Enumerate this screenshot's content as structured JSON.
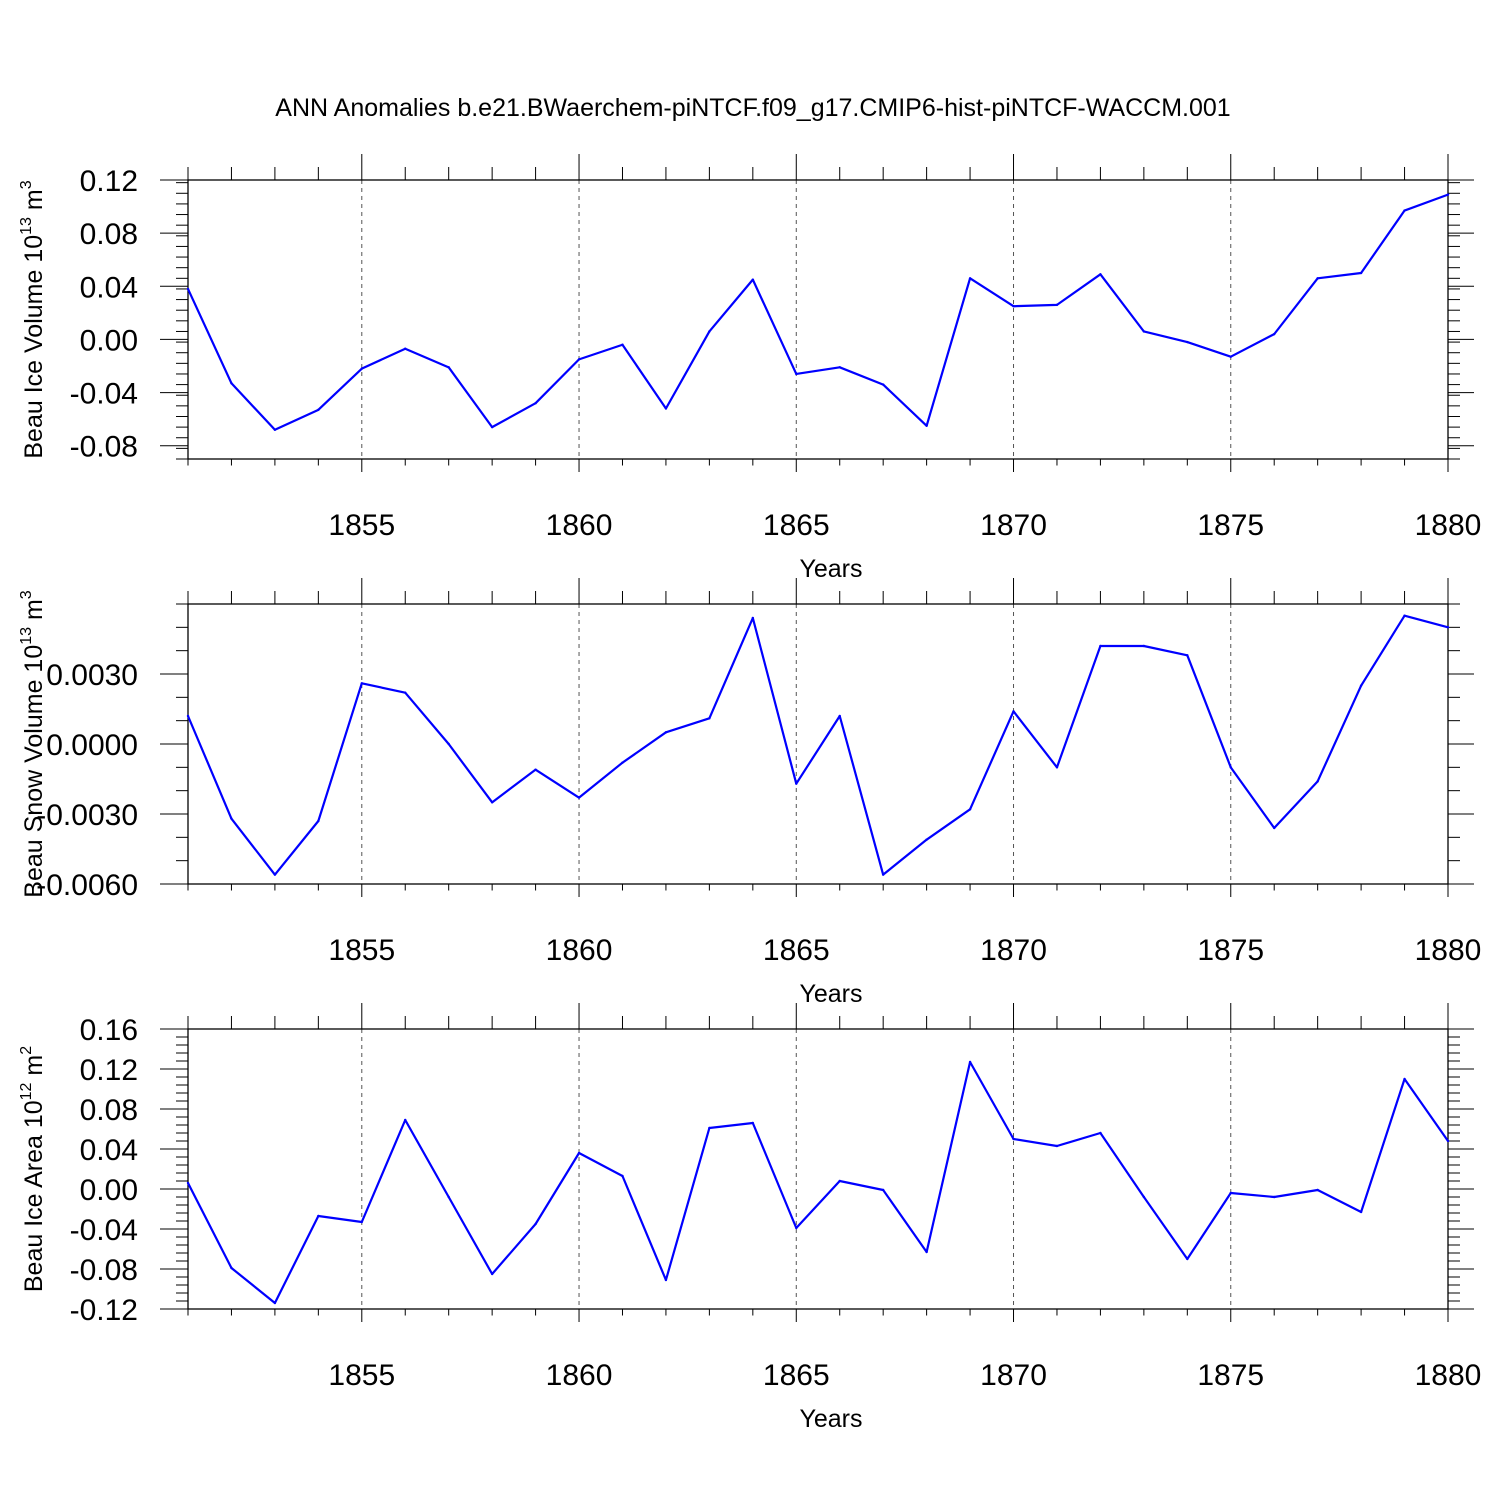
{
  "title": "ANN Anomalies b.e21.BWaerchem-piNTCF.f09_g17.CMIP6-hist-piNTCF-WACCM.001",
  "colors": {
    "series": "#0000ff",
    "axes": "#000000",
    "grid": "#555555"
  },
  "chart_data": [
    {
      "type": "line",
      "ylabel": "Beau Ice Volume 10",
      "ylabel_sup": "13",
      "ylabel_unit": " m",
      "ylabel_unit_sup": "3",
      "xlabel": "Years",
      "xlim": [
        1851,
        1880
      ],
      "ylim": [
        -0.09,
        0.12
      ],
      "yticks": [
        0.12,
        0.08,
        0.04,
        0.0,
        -0.04,
        -0.08
      ],
      "ytick_labels": [
        "0.12",
        "0.08",
        "0.04",
        "0.00",
        "-0.04",
        "-0.08"
      ],
      "yminor_step": 0.008,
      "xticks": [
        1855,
        1860,
        1865,
        1870,
        1875,
        1880
      ],
      "xtick_labels": [
        "1855",
        "1860",
        "1865",
        "1870",
        "1875",
        "1880"
      ],
      "x": [
        1851,
        1852,
        1853,
        1854,
        1855,
        1856,
        1857,
        1858,
        1859,
        1860,
        1861,
        1862,
        1863,
        1864,
        1865,
        1866,
        1867,
        1868,
        1869,
        1870,
        1871,
        1872,
        1873,
        1874,
        1875,
        1876,
        1877,
        1878,
        1879,
        1880
      ],
      "series": [
        {
          "name": "Beau Ice Volume",
          "values": [
            0.038,
            -0.033,
            -0.068,
            -0.053,
            -0.022,
            -0.007,
            -0.021,
            -0.066,
            -0.048,
            -0.015,
            -0.004,
            -0.052,
            0.006,
            0.045,
            -0.026,
            -0.021,
            -0.034,
            -0.065,
            0.046,
            0.025,
            0.026,
            0.049,
            0.006,
            -0.002,
            -0.013,
            0.004,
            0.046,
            0.05,
            0.097,
            0.109
          ]
        }
      ]
    },
    {
      "type": "line",
      "ylabel": "Beau Snow Volume 10",
      "ylabel_sup": "13",
      "ylabel_unit": " m",
      "ylabel_unit_sup": "3",
      "xlabel": "Years",
      "xlim": [
        1851,
        1880
      ],
      "ylim": [
        -0.006,
        0.006
      ],
      "yticks": [
        0.003,
        0.0,
        -0.003,
        -0.006
      ],
      "ytick_labels": [
        "0.0030",
        "0.0000",
        "-0.0030",
        "-0.0060"
      ],
      "yminor_step": 0.001,
      "xticks": [
        1855,
        1860,
        1865,
        1870,
        1875,
        1880
      ],
      "xtick_labels": [
        "1855",
        "1860",
        "1865",
        "1870",
        "1875",
        "1880"
      ],
      "x": [
        1851,
        1852,
        1853,
        1854,
        1855,
        1856,
        1857,
        1858,
        1859,
        1860,
        1861,
        1862,
        1863,
        1864,
        1865,
        1866,
        1867,
        1868,
        1869,
        1870,
        1871,
        1872,
        1873,
        1874,
        1875,
        1876,
        1877,
        1878,
        1879,
        1880
      ],
      "series": [
        {
          "name": "Beau Snow Volume",
          "values": [
            0.0012,
            -0.0032,
            -0.0056,
            -0.0033,
            0.0026,
            0.0022,
            0.0,
            -0.0025,
            -0.0011,
            -0.0023,
            -0.0008,
            0.0005,
            0.0011,
            0.0054,
            -0.0017,
            0.0012,
            -0.0056,
            -0.0041,
            -0.0028,
            0.0014,
            -0.001,
            0.0042,
            0.0042,
            0.0038,
            -0.001,
            -0.0036,
            -0.0016,
            0.0025,
            0.0055,
            0.005
          ]
        }
      ]
    },
    {
      "type": "line",
      "ylabel": "Beau Ice Area 10",
      "ylabel_sup": "12",
      "ylabel_unit": " m",
      "ylabel_unit_sup": "2",
      "xlabel": "Years",
      "xlim": [
        1851,
        1880
      ],
      "ylim": [
        -0.12,
        0.16
      ],
      "yticks": [
        0.16,
        0.12,
        0.08,
        0.04,
        0.0,
        -0.04,
        -0.08,
        -0.12
      ],
      "ytick_labels": [
        "0.16",
        "0.12",
        "0.08",
        "0.04",
        "0.00",
        "-0.04",
        "-0.08",
        "-0.12"
      ],
      "yminor_step": 0.008,
      "xticks": [
        1855,
        1860,
        1865,
        1870,
        1875,
        1880
      ],
      "xtick_labels": [
        "1855",
        "1860",
        "1865",
        "1870",
        "1875",
        "1880"
      ],
      "x": [
        1851,
        1852,
        1853,
        1854,
        1855,
        1856,
        1857,
        1858,
        1859,
        1860,
        1861,
        1862,
        1863,
        1864,
        1865,
        1866,
        1867,
        1868,
        1869,
        1870,
        1871,
        1872,
        1873,
        1874,
        1875,
        1876,
        1877,
        1878,
        1879,
        1880
      ],
      "series": [
        {
          "name": "Beau Ice Area",
          "values": [
            0.006,
            -0.079,
            -0.114,
            -0.027,
            -0.033,
            0.069,
            -0.008,
            -0.085,
            -0.035,
            0.036,
            0.013,
            -0.091,
            0.061,
            0.066,
            -0.039,
            0.008,
            -0.001,
            -0.063,
            0.127,
            0.05,
            0.043,
            0.056,
            -0.008,
            -0.07,
            -0.004,
            -0.008,
            -0.001,
            -0.023,
            0.11,
            0.048
          ]
        }
      ]
    }
  ]
}
